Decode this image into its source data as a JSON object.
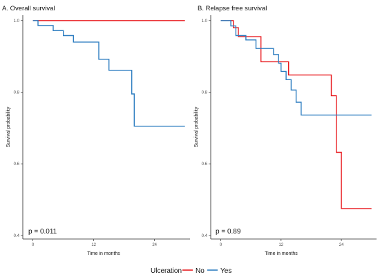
{
  "legend": {
    "title": "Ulceration",
    "entries": [
      {
        "label": "No",
        "color": "#e8191e"
      },
      {
        "label": "Yes",
        "color": "#2d7dc0"
      }
    ]
  },
  "chart_data": [
    {
      "type": "line",
      "title": "A. Overall survival",
      "xlabel": "Time in months",
      "ylabel": "Survival probability",
      "xlim": [
        -2,
        31
      ],
      "ylim": [
        0.39,
        1.015
      ],
      "xticks": [
        0,
        12,
        24
      ],
      "yticks": [
        0.4,
        0.6,
        0.8,
        1.0
      ],
      "ytick_labels": [
        "0.4",
        "0.6",
        "0.8",
        "1.0"
      ],
      "annotation": "p = 0.011",
      "series": [
        {
          "name": "No",
          "color": "#e8191e",
          "step": true,
          "x": [
            0,
            30
          ],
          "y": [
            1.0,
            1.0
          ]
        },
        {
          "name": "Yes",
          "color": "#2d7dc0",
          "step": true,
          "x": [
            0,
            1,
            4,
            6,
            8,
            13,
            15,
            19.5,
            20,
            30
          ],
          "y": [
            1.0,
            0.986,
            0.972,
            0.958,
            0.94,
            0.892,
            0.861,
            0.795,
            0.705,
            0.705
          ]
        }
      ]
    },
    {
      "type": "line",
      "title": "B. Relapse free survival",
      "xlabel": "Time in months",
      "ylabel": "Survival probability",
      "xlim": [
        -2,
        31
      ],
      "ylim": [
        0.39,
        1.015
      ],
      "xticks": [
        0,
        12,
        24
      ],
      "yticks": [
        0.4,
        0.6,
        0.8,
        1.0
      ],
      "ytick_labels": [
        "0.4",
        "0.6",
        "0.8",
        "1.0"
      ],
      "annotation": "p = 0.89",
      "series": [
        {
          "name": "No",
          "color": "#e8191e",
          "step": true,
          "x": [
            0,
            2.5,
            3.5,
            7,
            8,
            12.5,
            13.5,
            18,
            22,
            23,
            24,
            30
          ],
          "y": [
            1.0,
            0.98,
            0.955,
            0.955,
            0.885,
            0.885,
            0.848,
            0.848,
            0.79,
            0.632,
            0.475,
            0.475
          ]
        },
        {
          "name": "Yes",
          "color": "#2d7dc0",
          "step": true,
          "x": [
            0,
            2,
            3,
            5,
            7,
            10.5,
            11.5,
            12,
            13,
            14,
            15,
            16,
            30
          ],
          "y": [
            1.0,
            0.985,
            0.958,
            0.946,
            0.922,
            0.905,
            0.881,
            0.858,
            0.835,
            0.806,
            0.772,
            0.736,
            0.736
          ]
        }
      ]
    }
  ]
}
